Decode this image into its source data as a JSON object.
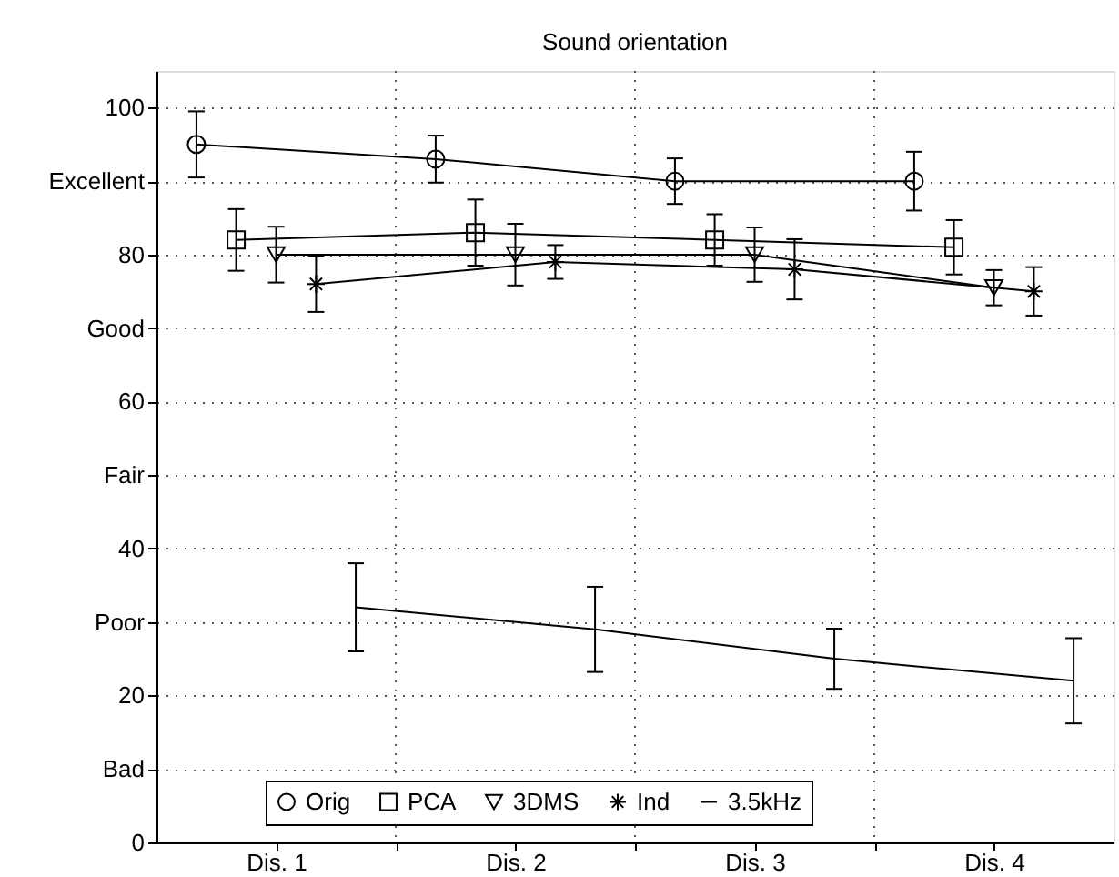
{
  "chart_data": {
    "type": "line",
    "title": "Sound orientation",
    "xlim": [
      0,
      4
    ],
    "xticks": [
      {
        "value": 0.5,
        "label": "Dis. 1"
      },
      {
        "value": 1,
        "label": null
      },
      {
        "value": 1.5,
        "label": "Dis. 2"
      },
      {
        "value": 2,
        "label": null
      },
      {
        "value": 2.5,
        "label": "Dis. 3"
      },
      {
        "value": 3,
        "label": null
      },
      {
        "value": 3.5,
        "label": "Dis. 4"
      }
    ],
    "ylim": [
      0,
      105
    ],
    "yticks": [
      0,
      {
        "value": 10,
        "label": "Bad"
      },
      20,
      {
        "value": 30,
        "label": "Poor"
      },
      40,
      {
        "value": 50,
        "label": "Fair"
      },
      60,
      {
        "value": 70,
        "label": "Good"
      },
      80,
      {
        "value": 90,
        "label": "Excellent"
      },
      100
    ],
    "grid": true,
    "legend": "bottom",
    "line_style": "solid",
    "series": [
      {
        "name": "Orig",
        "color": "#000000",
        "marker": "circle",
        "x": [
          0.167,
          1.167,
          2.167,
          3.167
        ],
        "values": [
          95,
          93,
          90,
          90
        ],
        "errors": [
          4.5,
          3.2,
          3.1,
          4
        ]
      },
      {
        "name": "PCA",
        "color": "#000000",
        "marker": "square",
        "x": [
          0.333,
          1.333,
          2.333,
          3.333
        ],
        "values": [
          82,
          83,
          82,
          81
        ],
        "errors": [
          4.2,
          4.5,
          3.5,
          3.7
        ]
      },
      {
        "name": "3DMS",
        "color": "#000000",
        "marker": "triangle",
        "x": [
          0.5,
          1.5,
          2.5,
          3.5
        ],
        "values": [
          80,
          80,
          80,
          75.5
        ],
        "errors": [
          3.8,
          4.2,
          3.7,
          2.4
        ]
      },
      {
        "name": "Ind",
        "color": "#000000",
        "marker": "cross",
        "x": [
          0.667,
          1.667,
          2.667,
          3.667
        ],
        "values": [
          76,
          79,
          78,
          75
        ],
        "errors": [
          3.8,
          2.3,
          4.1,
          3.3
        ]
      },
      {
        "name": "3.5kHz",
        "color": "#000000",
        "marker": "none",
        "x": [
          0.833,
          1.833,
          2.833,
          3.833
        ],
        "values": [
          32,
          29,
          25,
          22
        ],
        "errors": [
          6,
          5.8,
          4.1,
          5.8
        ]
      }
    ]
  }
}
